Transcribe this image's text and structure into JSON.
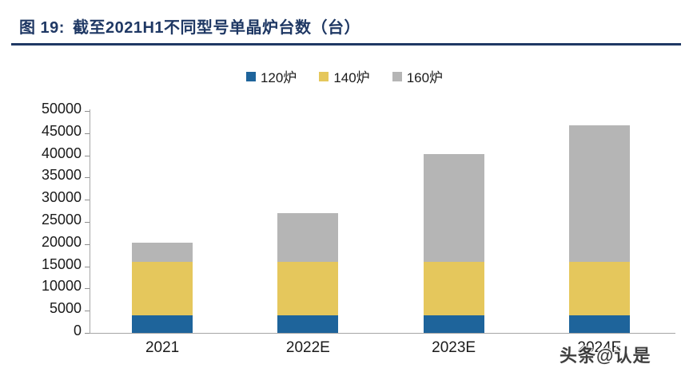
{
  "figure": {
    "label": "图  19:",
    "title": "截至2021H1不同型号单晶炉台数（台）"
  },
  "watermark": "头条@认是",
  "colors": {
    "accent_navy": "#1F3864",
    "series_120": "#1E649B",
    "series_140": "#E5C75C",
    "series_160": "#B5B5B5",
    "axis_line": "#A6A6A6",
    "tick_line": "#8C8C8C",
    "label_text": "#1A1A1A"
  },
  "chart_data": {
    "type": "bar",
    "stacked": true,
    "title": "截至2021H1不同型号单晶炉台数（台）",
    "categories": [
      "2021",
      "2022E",
      "2023E",
      "2024E"
    ],
    "series": [
      {
        "name": "120炉",
        "color_key": "series_120",
        "values": [
          4000,
          4000,
          4000,
          4000
        ]
      },
      {
        "name": "140炉",
        "color_key": "series_140",
        "values": [
          12000,
          12000,
          12000,
          12000
        ]
      },
      {
        "name": "160炉",
        "color_key": "series_160",
        "values": [
          4400,
          11000,
          24200,
          30800
        ]
      }
    ],
    "totals": [
      20400,
      27000,
      40200,
      46800
    ],
    "xlabel": "",
    "ylabel": "",
    "ylim": [
      0,
      50000
    ],
    "ytick_step": 5000,
    "yticks": [
      0,
      5000,
      10000,
      15000,
      20000,
      25000,
      30000,
      35000,
      40000,
      45000,
      50000
    ],
    "legend_position": "top-center",
    "grid": false
  }
}
